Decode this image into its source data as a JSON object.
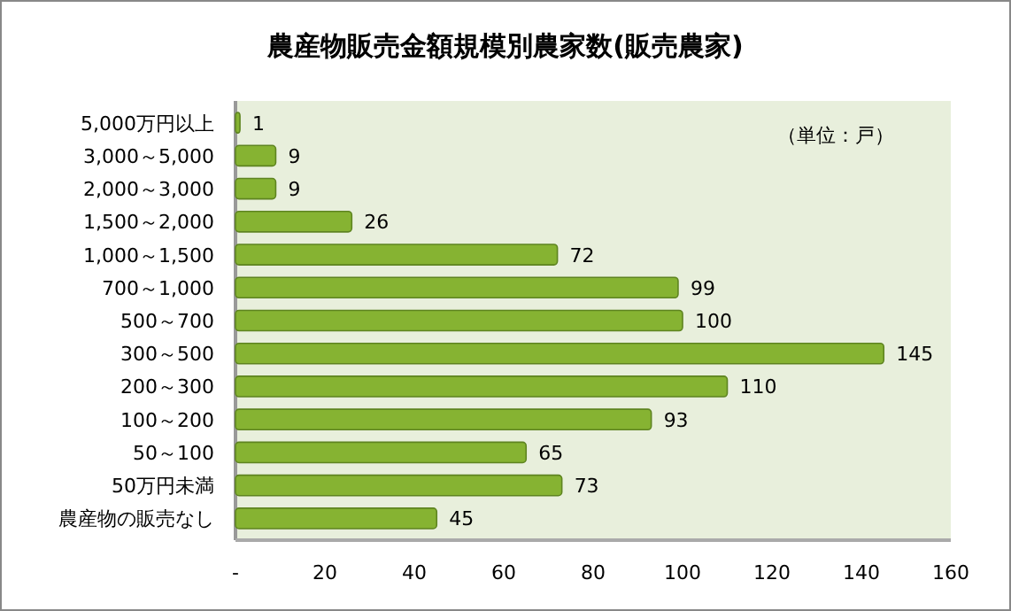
{
  "chart_data": {
    "type": "bar",
    "orientation": "horizontal",
    "title": "農産物販売金額規模別農家数(販売農家)",
    "categories": [
      "5,000万円以上",
      "3,000～5,000",
      "2,000～3,000",
      "1,500～2,000",
      "1,000～1,500",
      "700～1,000",
      "500～700",
      "300～500",
      "200～300",
      "100～200",
      "50～100",
      "50万円未満",
      "農産物の販売なし"
    ],
    "values": [
      1,
      9,
      9,
      26,
      72,
      99,
      100,
      145,
      110,
      93,
      65,
      73,
      45
    ],
    "color": "#86b332",
    "xlim": [
      0,
      160
    ],
    "xticks": [
      {
        "value": 0,
        "label": "-"
      },
      20,
      40,
      60,
      80,
      100,
      120,
      140,
      160
    ],
    "data_labels": true,
    "grid": false,
    "annotations": [
      "（単位：戸）"
    ]
  }
}
